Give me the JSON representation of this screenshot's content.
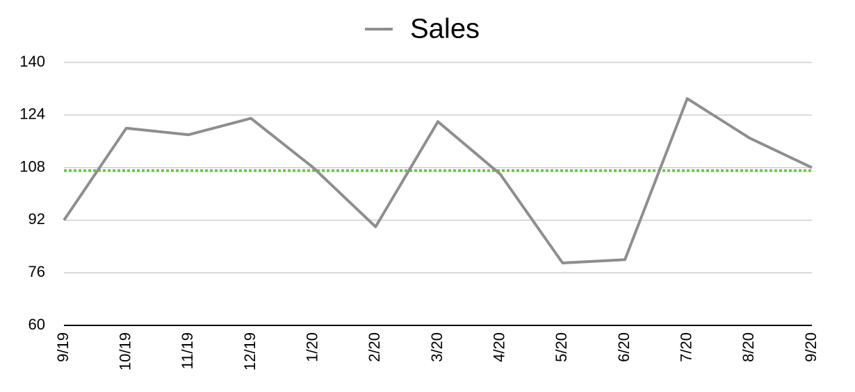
{
  "chart_data": {
    "type": "line",
    "categories": [
      "9/19",
      "10/19",
      "11/19",
      "12/19",
      "1/20",
      "2/20",
      "3/20",
      "4/20",
      "5/20",
      "6/20",
      "7/20",
      "8/20",
      "9/20"
    ],
    "series": [
      {
        "name": "Sales",
        "color": "#8e8e8e",
        "values": [
          92,
          120,
          118,
          123,
          108,
          90,
          122,
          106,
          79,
          80,
          129,
          117,
          108
        ]
      }
    ],
    "reference_line": {
      "value": 107.1,
      "color": "#5fd23a"
    },
    "ylim": [
      60,
      140
    ],
    "yticks": [
      60,
      76,
      92,
      108,
      124,
      140
    ],
    "grid": true,
    "legend": "top"
  }
}
